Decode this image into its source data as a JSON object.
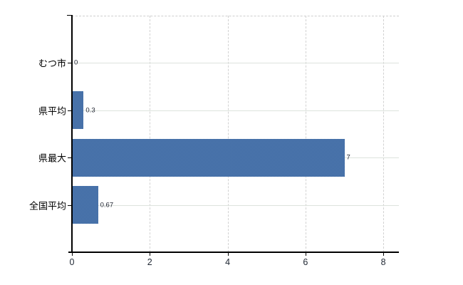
{
  "chart_data": {
    "type": "bar",
    "orientation": "horizontal",
    "title": "",
    "categories": [
      "むつ市",
      "県平均",
      "県最大",
      "全国平均"
    ],
    "values": [
      0,
      0.3,
      7,
      0.67
    ],
    "value_labels": [
      "0",
      "0.3",
      "7",
      "0.67"
    ],
    "x_tick_labels": [
      "0",
      "2",
      "4",
      "6",
      "8"
    ],
    "x_tick_values": [
      0,
      2,
      4,
      6,
      8
    ],
    "xlim": [
      0,
      8.4
    ],
    "grid": true,
    "legend_position": "none",
    "bar_color": "#3e6eae",
    "h_gridline_color": "#dde3dd",
    "v_gridline_color": "#d2d2d2",
    "axis_color": "#000000",
    "label_color": "#000000",
    "background": "#ffffff"
  }
}
